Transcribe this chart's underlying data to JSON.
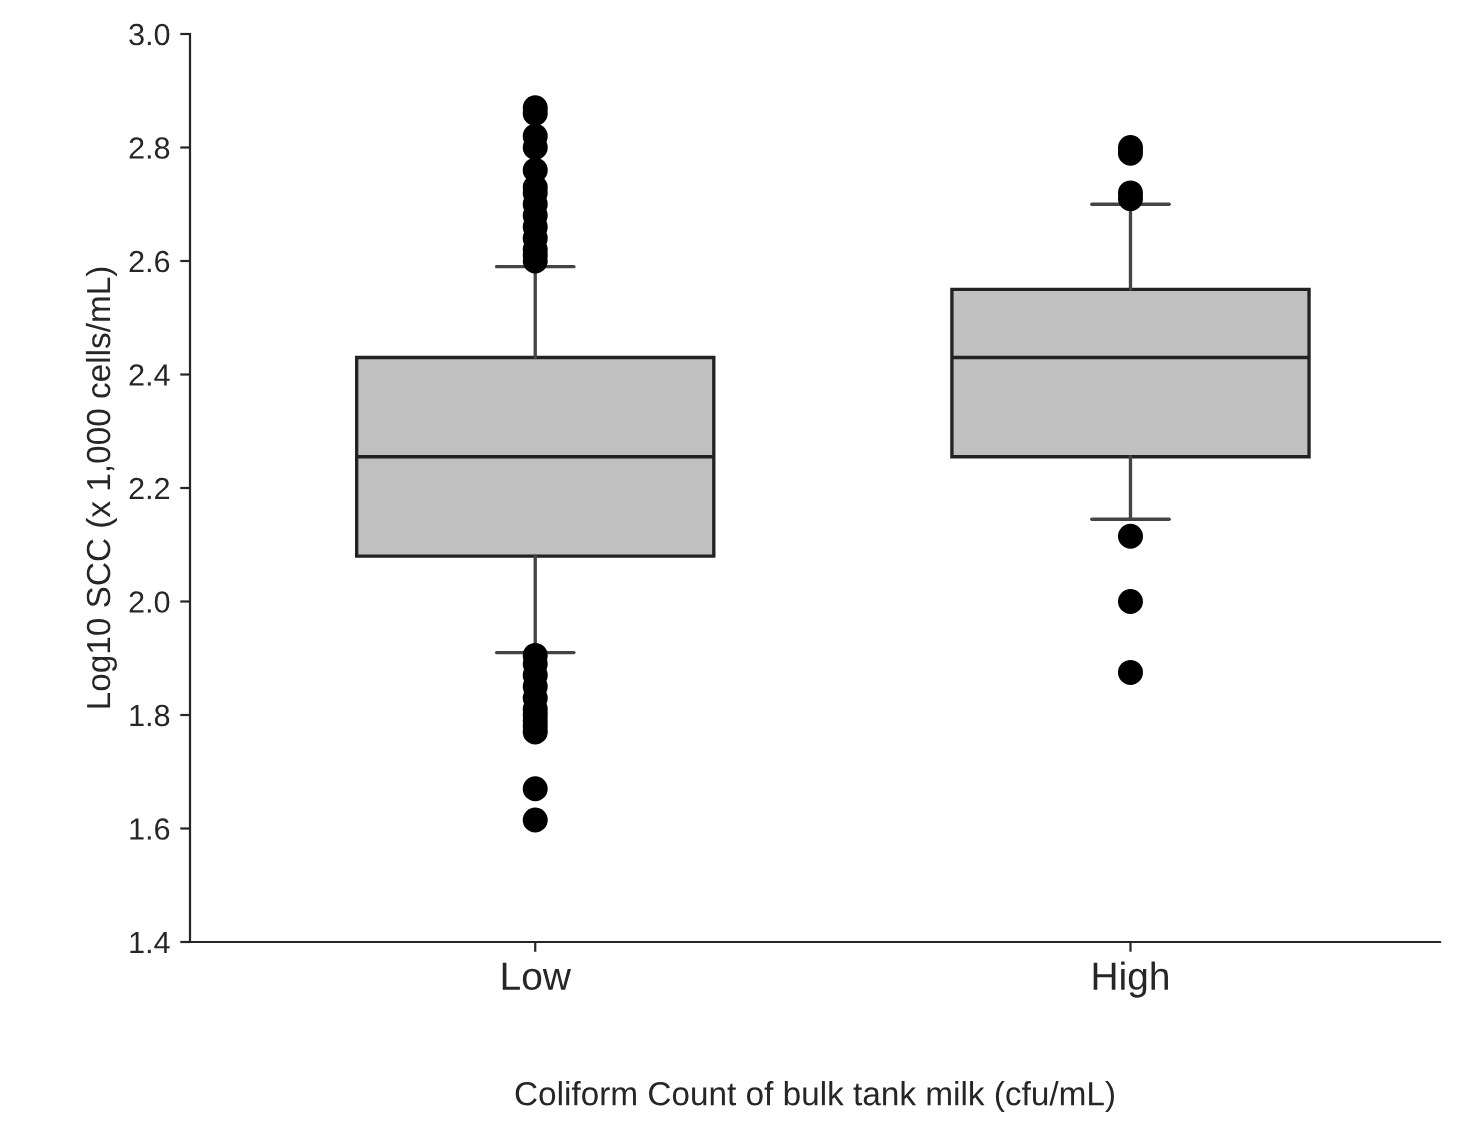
{
  "chart_data": {
    "type": "box",
    "xlabel": "Coliform Count of bulk tank milk (cfu/mL)",
    "ylabel": "Log10 SCC (x 1,000 cells/mL)",
    "categories": [
      "Low",
      "High"
    ],
    "color": "#c0c0c0",
    "boxes": [
      {
        "low": 1.91,
        "q1": 2.08,
        "median": 2.255,
        "q3": 2.43,
        "high": 2.59,
        "outliers": [
          1.905,
          1.89,
          1.87,
          1.85,
          1.83,
          1.81,
          1.8,
          1.79,
          1.78,
          1.77,
          1.67,
          1.615,
          2.6,
          2.61,
          2.62,
          2.64,
          2.66,
          2.68,
          2.7,
          2.72,
          2.73,
          2.76,
          2.8,
          2.82,
          2.86,
          2.87
        ]
      },
      {
        "low": 2.145,
        "q1": 2.255,
        "median": 2.43,
        "q3": 2.55,
        "high": 2.7,
        "outliers": [
          2.115,
          2.0,
          1.875,
          2.71,
          2.72,
          2.79,
          2.8
        ]
      }
    ],
    "ylim": [
      1.4,
      3.0
    ],
    "yticks": [
      {
        "value": 1.4,
        "label": "1.4"
      },
      {
        "value": 1.6,
        "label": "1.6"
      },
      {
        "value": 1.8,
        "label": "1.8"
      },
      {
        "value": 2.0,
        "label": "2.0"
      },
      {
        "value": 2.2,
        "label": "2.2"
      },
      {
        "value": 2.4,
        "label": "2.4"
      },
      {
        "value": 2.6,
        "label": "2.6"
      },
      {
        "value": 2.8,
        "label": "2.8"
      },
      {
        "value": 3.0,
        "label": "3.0"
      }
    ],
    "grid": false
  }
}
